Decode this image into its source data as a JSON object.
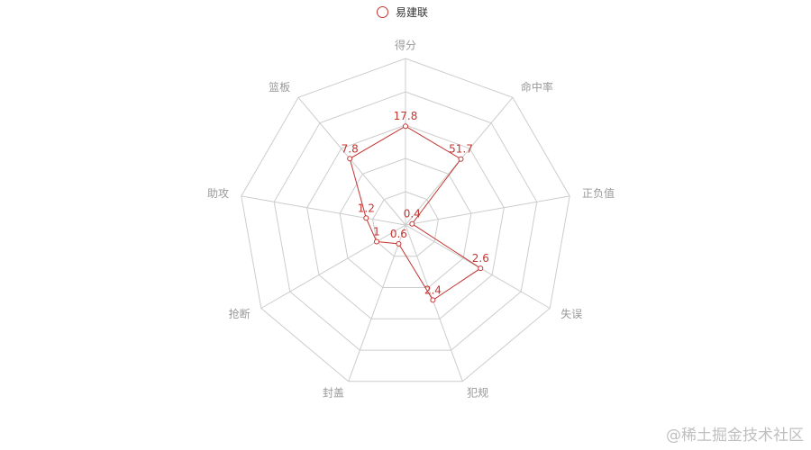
{
  "legend": {
    "label": "易建联"
  },
  "watermark": "@稀土掘金技术社区",
  "colors": {
    "series": "#c23531",
    "grid": "#cccccc",
    "axis_label": "#999999"
  },
  "chart_data": {
    "type": "radar",
    "title": "",
    "indicators": [
      {
        "name": "得分",
        "max": 30
      },
      {
        "name": "命中率",
        "max": 100
      },
      {
        "name": "正负值",
        "max": 10
      },
      {
        "name": "失误",
        "max": 5
      },
      {
        "name": "犯规",
        "max": 5
      },
      {
        "name": "封盖",
        "max": 5
      },
      {
        "name": "抢断",
        "max": 5
      },
      {
        "name": "助攻",
        "max": 5
      },
      {
        "name": "篮板",
        "max": 15
      }
    ],
    "series": [
      {
        "name": "易建联",
        "values": [
          17.8,
          51.7,
          0.4,
          2.6,
          2.4,
          0.6,
          1,
          1.2,
          7.8
        ]
      }
    ],
    "grid_levels": 5,
    "legend_position": "top-center"
  }
}
